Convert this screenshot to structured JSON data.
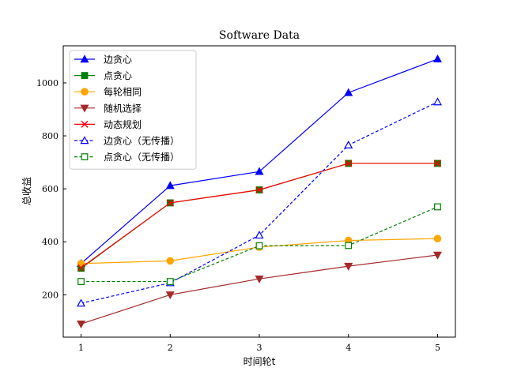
{
  "chart_data": {
    "type": "line",
    "title": "Software Data",
    "xlabel": "时间轮t",
    "ylabel": "总收益",
    "x": [
      1,
      2,
      3,
      4,
      5
    ],
    "xlim": [
      0.8,
      5.2
    ],
    "ylim": [
      40,
      1140
    ],
    "xticks": [
      1,
      2,
      3,
      4,
      5
    ],
    "yticks": [
      200,
      400,
      600,
      800,
      1000
    ],
    "grid": false,
    "legend_position": "upper-left",
    "series": [
      {
        "name": "边贪心",
        "values": [
          318,
          612,
          665,
          963,
          1090
        ],
        "color": "#0000ff",
        "marker": "triangle-up",
        "linestyle": "solid",
        "filled": true
      },
      {
        "name": "点贪心",
        "values": [
          300,
          547,
          596,
          696,
          696
        ],
        "color": "#008000",
        "marker": "square",
        "linestyle": "solid",
        "filled": true
      },
      {
        "name": "每轮相同",
        "values": [
          318,
          328,
          380,
          405,
          412
        ],
        "color": "#ffa500",
        "marker": "circle",
        "linestyle": "solid",
        "filled": true
      },
      {
        "name": "随机选择",
        "values": [
          90,
          200,
          260,
          308,
          350
        ],
        "color": "#a52a2a",
        "marker": "triangle-down",
        "linestyle": "solid",
        "filled": true
      },
      {
        "name": "动态规划",
        "values": [
          302,
          547,
          596,
          696,
          696
        ],
        "color": "#ff0000",
        "marker": "x",
        "linestyle": "solid",
        "filled": false
      },
      {
        "name": "边贪心（无传播）",
        "values": [
          168,
          245,
          425,
          765,
          928
        ],
        "color": "#0000ff",
        "marker": "triangle-up",
        "linestyle": "dashed",
        "filled": false
      },
      {
        "name": "点贪心（无传播）",
        "values": [
          250,
          250,
          385,
          386,
          532
        ],
        "color": "#008000",
        "marker": "square",
        "linestyle": "dashed",
        "filled": false
      }
    ]
  }
}
